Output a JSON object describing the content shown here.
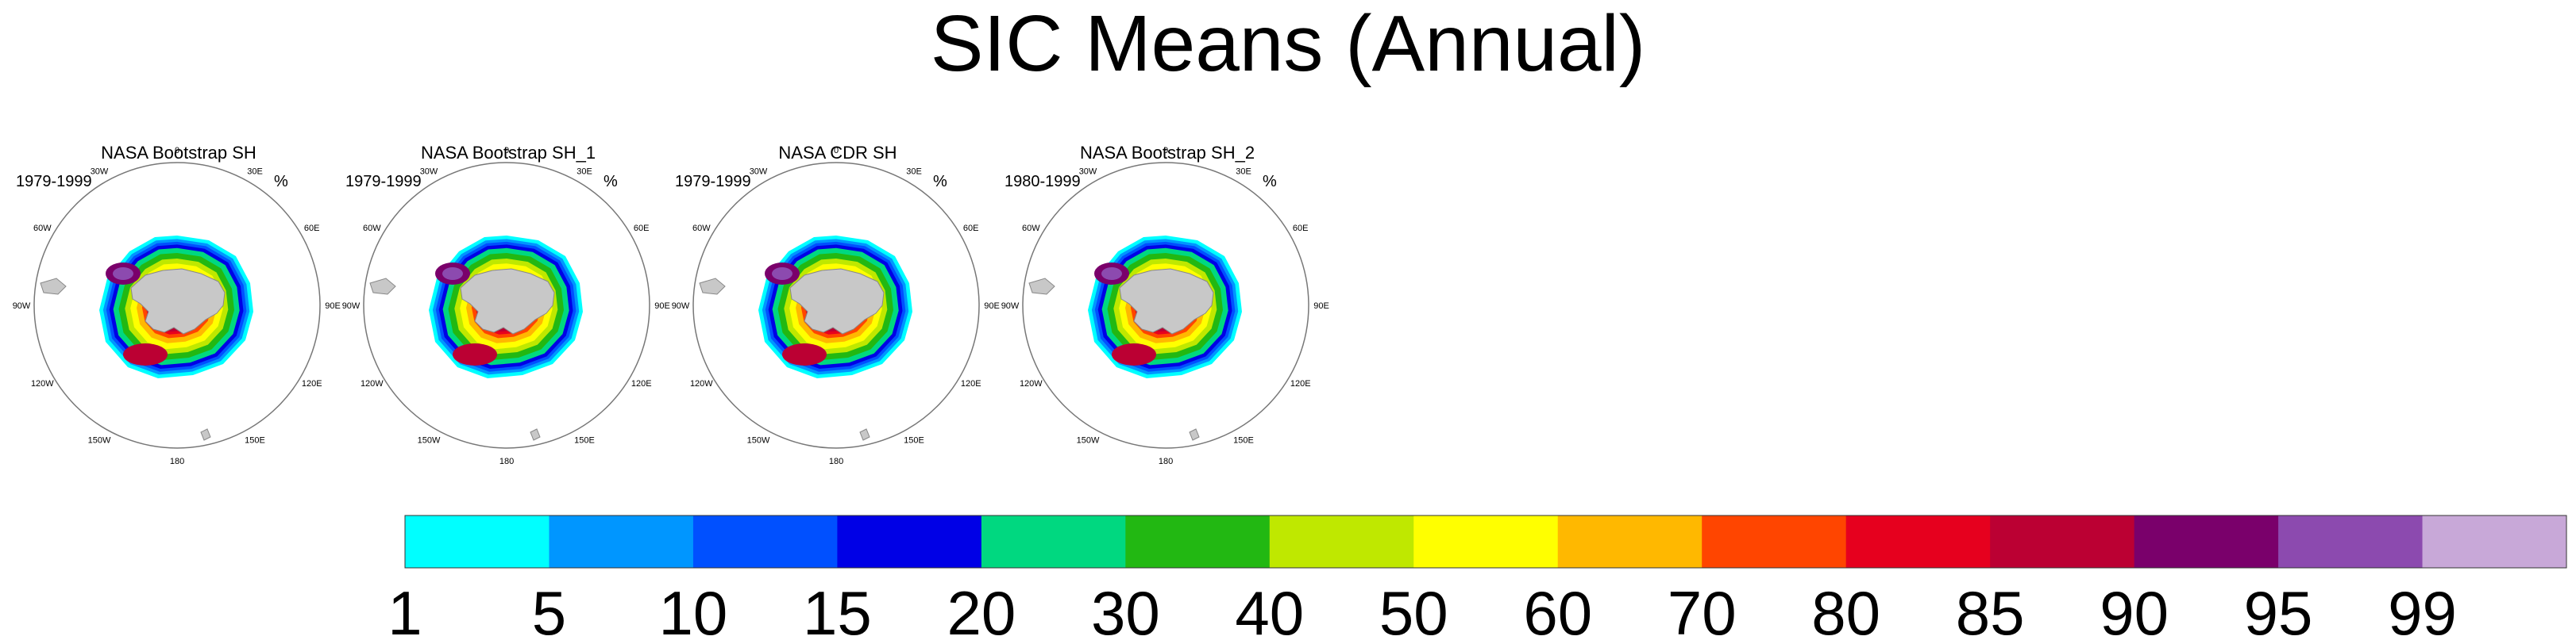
{
  "title": "SIC Means (Annual)",
  "panels": [
    {
      "title": "NASA Bootstrap SH",
      "period": "1979-1999",
      "unit": "%"
    },
    {
      "title": "NASA Bootstrap SH_1",
      "period": "1979-1999",
      "unit": "%"
    },
    {
      "title": "NASA CDR SH",
      "period": "1979-1999",
      "unit": "%"
    },
    {
      "title": "NASA Bootstrap SH_2",
      "period": "1980-1999",
      "unit": "%"
    }
  ],
  "longitude_labels": [
    "0",
    "30E",
    "60E",
    "90E",
    "120E",
    "150E",
    "180",
    "150W",
    "120W",
    "90W",
    "60W",
    "30W"
  ],
  "colorbar": {
    "labels": [
      "1",
      "5",
      "10",
      "15",
      "20",
      "30",
      "40",
      "50",
      "60",
      "70",
      "80",
      "85",
      "90",
      "95",
      "99"
    ],
    "colors": [
      "#00ffff",
      "#0096ff",
      "#0050ff",
      "#0000e6",
      "#00d880",
      "#22b812",
      "#bfe800",
      "#ffff00",
      "#ffb800",
      "#ff4500",
      "#e6001e",
      "#bb0033",
      "#7a006b",
      "#8c4aaf",
      "#c8a8d8"
    ]
  }
}
